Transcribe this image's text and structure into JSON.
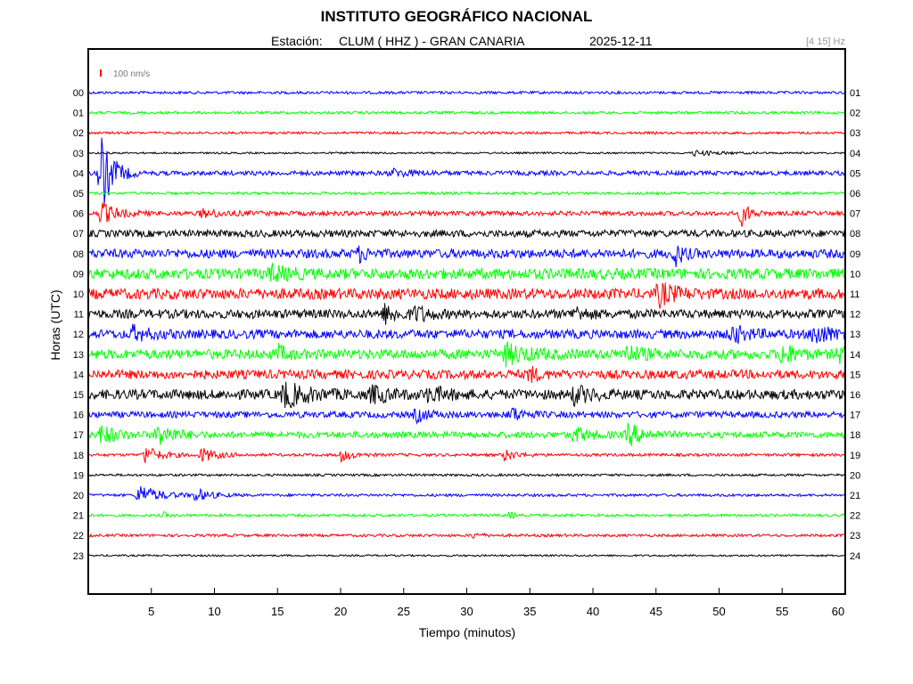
{
  "chart_data": {
    "type": "line",
    "title": "INSTITUTO GEOGRÁFICO NACIONAL",
    "station_prefix": "Estación:",
    "station": "CLUM ( HHZ ) - GRAN CANARIA",
    "date": "2025-12-11",
    "filter": "[4 15] Hz",
    "scale_label": "100 nm/s",
    "xlabel": "Tiempo (minutos)",
    "ylabel": "Horas (UTC)",
    "xlim": [
      0,
      60
    ],
    "x_ticks": [
      5,
      10,
      15,
      20,
      25,
      30,
      35,
      40,
      45,
      50,
      55,
      60
    ],
    "left_labels": [
      "00",
      "01",
      "02",
      "03",
      "04",
      "05",
      "06",
      "07",
      "08",
      "09",
      "10",
      "11",
      "12",
      "13",
      "14",
      "15",
      "16",
      "17",
      "18",
      "19",
      "20",
      "21",
      "22",
      "23"
    ],
    "right_labels": [
      "01",
      "02",
      "03",
      "04",
      "05",
      "06",
      "07",
      "08",
      "09",
      "10",
      "11",
      "12",
      "13",
      "14",
      "15",
      "16",
      "17",
      "18",
      "19",
      "20",
      "21",
      "22",
      "23",
      "24"
    ],
    "colors": [
      "#0000ff",
      "#00ff00",
      "#ff0000",
      "#000000"
    ],
    "noise_level": [
      1.5,
      1.5,
      1.3,
      1.0,
      2.5,
      1.5,
      2.5,
      4,
      5,
      6,
      6,
      5,
      5,
      5.5,
      5,
      5.5,
      3.5,
      3.5,
      1.6,
      1.3,
      1.5,
      1.5,
      1.5,
      1.0
    ],
    "events": [
      {
        "hour": 3,
        "minute": 48,
        "amp": 3,
        "dur": 3
      },
      {
        "hour": 4,
        "minute": 1.0,
        "amp": 45,
        "dur": 1.5
      },
      {
        "hour": 4,
        "minute": 24,
        "amp": 4,
        "dur": 3
      },
      {
        "hour": 6,
        "minute": 1.0,
        "amp": 12,
        "dur": 2
      },
      {
        "hour": 6,
        "minute": 9,
        "amp": 4,
        "dur": 3
      },
      {
        "hour": 6,
        "minute": 51.8,
        "amp": 14,
        "dur": 1
      },
      {
        "hour": 8,
        "minute": 21.5,
        "amp": 7,
        "dur": 1
      },
      {
        "hour": 8,
        "minute": 46.5,
        "amp": 12,
        "dur": 1
      },
      {
        "hour": 9,
        "minute": 14.5,
        "amp": 8,
        "dur": 2
      },
      {
        "hour": 10,
        "minute": 45.2,
        "amp": 12,
        "dur": 2
      },
      {
        "hour": 11,
        "minute": 23.5,
        "amp": 9,
        "dur": 2
      },
      {
        "hour": 11,
        "minute": 26,
        "amp": 7,
        "dur": 1.5
      },
      {
        "hour": 11,
        "minute": 38.5,
        "amp": 7,
        "dur": 1.5
      },
      {
        "hour": 12,
        "minute": 3.5,
        "amp": 7,
        "dur": 2
      },
      {
        "hour": 12,
        "minute": 51,
        "amp": 9,
        "dur": 2
      },
      {
        "hour": 12,
        "minute": 57.5,
        "amp": 12,
        "dur": 2
      },
      {
        "hour": 13,
        "minute": 15,
        "amp": 9,
        "dur": 1
      },
      {
        "hour": 13,
        "minute": 33,
        "amp": 10,
        "dur": 3
      },
      {
        "hour": 13,
        "minute": 42.5,
        "amp": 9,
        "dur": 2
      },
      {
        "hour": 13,
        "minute": 55,
        "amp": 12,
        "dur": 1.5
      },
      {
        "hour": 13,
        "minute": 59.5,
        "amp": 8,
        "dur": 1
      },
      {
        "hour": 14,
        "minute": 35,
        "amp": 8,
        "dur": 1
      },
      {
        "hour": 15,
        "minute": 15.5,
        "amp": 13,
        "dur": 3
      },
      {
        "hour": 15,
        "minute": 22.5,
        "amp": 9,
        "dur": 2
      },
      {
        "hour": 15,
        "minute": 27,
        "amp": 8,
        "dur": 2
      },
      {
        "hour": 15,
        "minute": 38.5,
        "amp": 9,
        "dur": 2
      },
      {
        "hour": 16,
        "minute": 26,
        "amp": 7,
        "dur": 1.5
      },
      {
        "hour": 16,
        "minute": 33.5,
        "amp": 8,
        "dur": 1.5
      },
      {
        "hour": 17,
        "minute": 1,
        "amp": 11,
        "dur": 2
      },
      {
        "hour": 17,
        "minute": 5.5,
        "amp": 13,
        "dur": 2
      },
      {
        "hour": 17,
        "minute": 38.5,
        "amp": 8,
        "dur": 2
      },
      {
        "hour": 17,
        "minute": 42.8,
        "amp": 12,
        "dur": 2
      },
      {
        "hour": 18,
        "minute": 4.5,
        "amp": 10,
        "dur": 2
      },
      {
        "hour": 18,
        "minute": 9,
        "amp": 8,
        "dur": 2
      },
      {
        "hour": 18,
        "minute": 20,
        "amp": 7,
        "dur": 1.5
      },
      {
        "hour": 18,
        "minute": 33,
        "amp": 6,
        "dur": 1.5
      },
      {
        "hour": 20,
        "minute": 4,
        "amp": 12,
        "dur": 2.5
      },
      {
        "hour": 20,
        "minute": 8.5,
        "amp": 7,
        "dur": 2
      },
      {
        "hour": 21,
        "minute": 6,
        "amp": 3,
        "dur": 0.5
      },
      {
        "hour": 21,
        "minute": 33.5,
        "amp": 4,
        "dur": 0.5
      },
      {
        "hour": 22,
        "minute": 30.5,
        "amp": 3,
        "dur": 1
      }
    ]
  }
}
